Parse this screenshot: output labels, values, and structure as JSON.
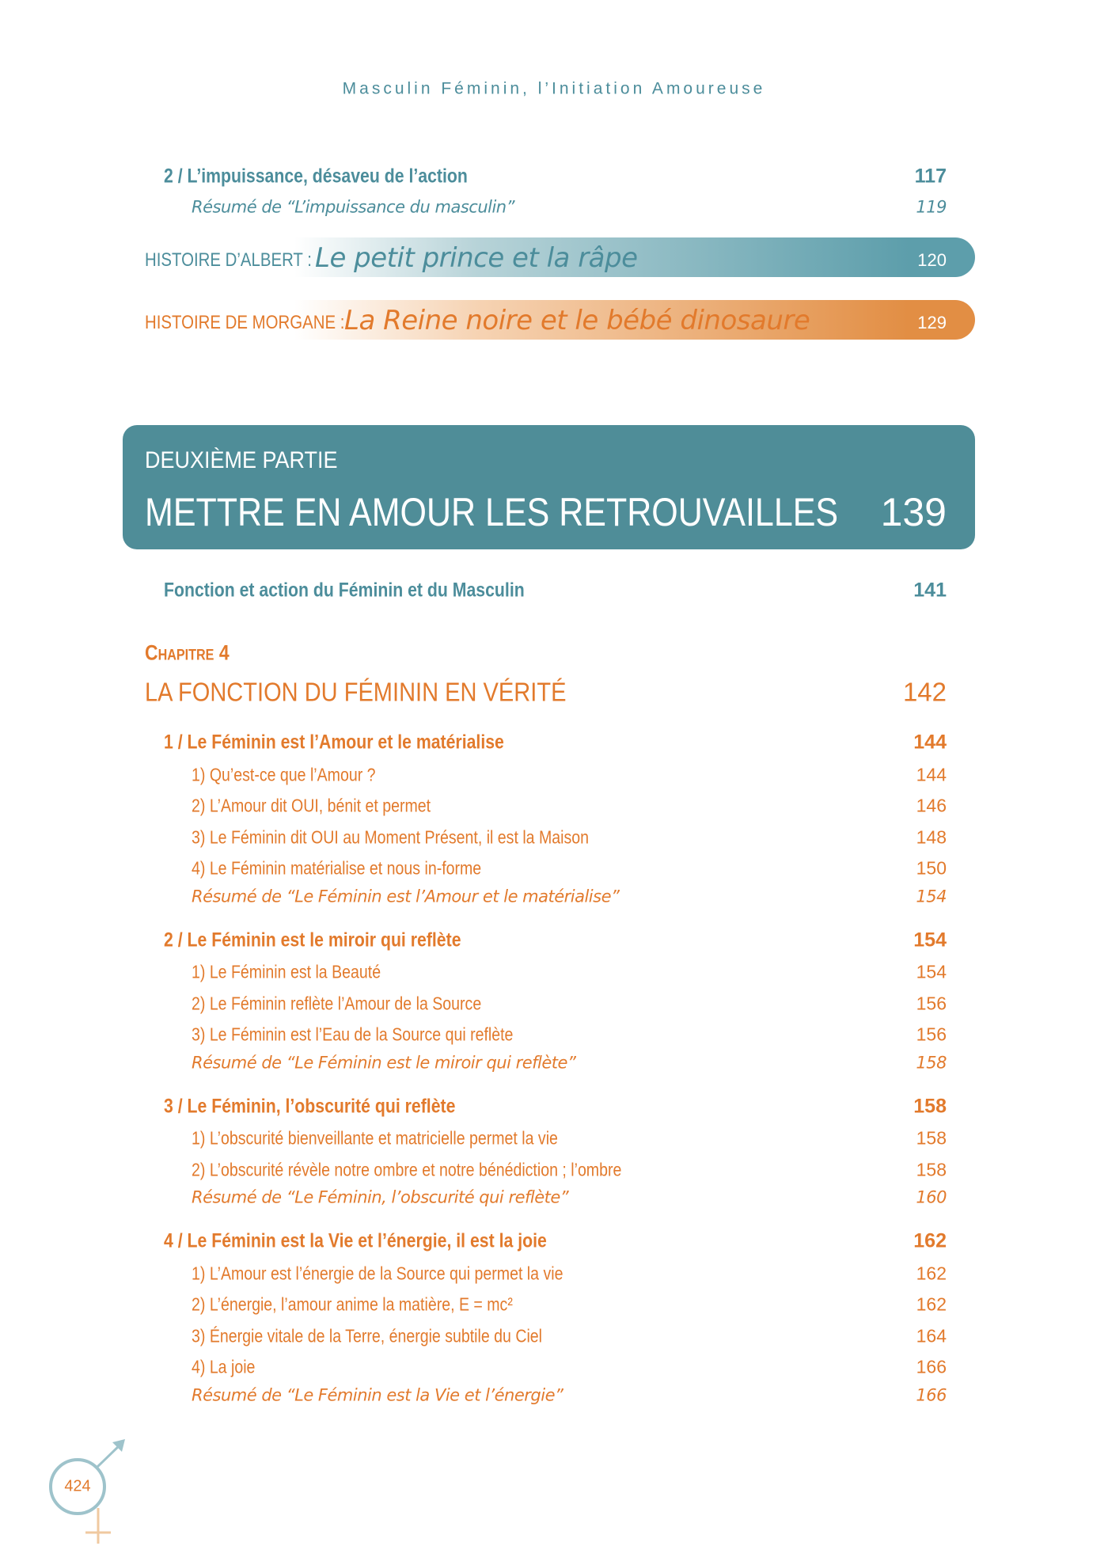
{
  "header": {
    "running_title": "Masculin Féminin, l’Initiation Amoureuse"
  },
  "top_entries": [
    {
      "text": "2 / L’impuissance, désaveu de l’action",
      "page": 117
    },
    {
      "text": "Résumé de “L’impuissance du masculin”",
      "page": 119
    }
  ],
  "stories": [
    {
      "label": "HISTOIRE D’ALBERT :",
      "title": "Le petit prince et la râpe",
      "page": 120
    },
    {
      "label": "HISTOIRE DE MORGANE :",
      "title": "La Reine noire et le bébé dinosaure",
      "page": 129
    }
  ],
  "part": {
    "label": "DEUXIÈME PARTIE",
    "title": "METTRE EN AMOUR LES RETROUVAILLES",
    "page": 139
  },
  "intro": {
    "text": "Fonction et action du Féminin et du Masculin",
    "page": 141
  },
  "chapter": {
    "label": "Chapitre 4",
    "title": "LA FONCTION DU FÉMININ EN VÉRITÉ",
    "page": 142
  },
  "sections": [
    {
      "title": "1 / Le Féminin est l’Amour et le matérialise",
      "page": 144,
      "items": [
        {
          "text": "1) Qu’est-ce que l’Amour ?",
          "page": 144
        },
        {
          "text": "2) L’Amour dit OUI, bénit et permet",
          "page": 146
        },
        {
          "text": "3) Le Féminin dit OUI au Moment Présent, il est la Maison",
          "page": 148
        },
        {
          "text": "4) Le Féminin matérialise et nous in-forme",
          "page": 150
        }
      ],
      "summary": {
        "text": "Résumé de “Le Féminin est l’Amour et le matérialise”",
        "page": 154
      }
    },
    {
      "title": "2 / Le Féminin est le miroir qui reflète",
      "page": 154,
      "items": [
        {
          "text": "1) Le Féminin est la Beauté",
          "page": 154
        },
        {
          "text": "2) Le Féminin reflète l’Amour de la Source",
          "page": 156
        },
        {
          "text": "3) Le Féminin est l’Eau de la Source qui reflète",
          "page": 156
        }
      ],
      "summary": {
        "text": "Résumé de “Le Féminin est le miroir qui reflète”",
        "page": 158
      }
    },
    {
      "title": "3 / Le Féminin, l’obscurité qui reflète",
      "page": 158,
      "items": [
        {
          "text": "1) L’obscurité bienveillante et matricielle permet la vie",
          "page": 158
        },
        {
          "text": "2) L’obscurité révèle notre ombre et notre bénédiction ; l’ombre",
          "page": 158
        }
      ],
      "summary": {
        "text": "Résumé de “Le Féminin, l’obscurité qui reflète”",
        "page": 160
      }
    },
    {
      "title": "4 / Le Féminin est la Vie et l’énergie, il est la joie",
      "page": 162,
      "items": [
        {
          "text": "1) L’Amour est l’énergie de la Source qui permet la vie",
          "page": 162
        },
        {
          "text": "2) L’énergie, l’amour anime la matière, E = mc²",
          "page": 162
        },
        {
          "text": "3) Énergie vitale de la Terre, énergie subtile du Ciel",
          "page": 164
        },
        {
          "text": "4) La joie",
          "page": 166
        }
      ],
      "summary": {
        "text": "Résumé de “Le Féminin est la Vie et l’énergie”",
        "page": 166
      }
    }
  ],
  "footer": {
    "page_number": 424
  }
}
